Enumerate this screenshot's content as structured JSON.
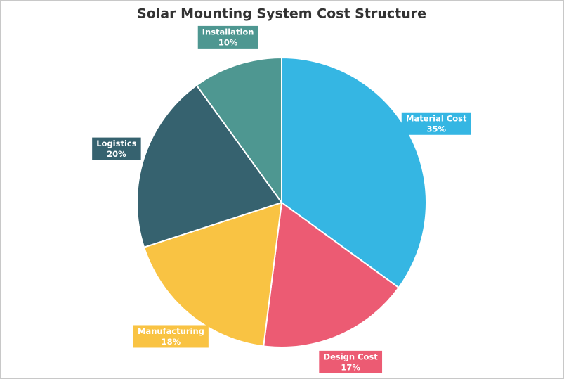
{
  "chart_data": {
    "type": "pie",
    "title": "Solar Mounting System Cost Structure",
    "categories": [
      "Material Cost",
      "Design Cost",
      "Manufacturing",
      "Logistics",
      "Installation"
    ],
    "values": [
      35,
      17,
      18,
      20,
      10
    ],
    "value_labels": [
      "35%",
      "17%",
      "18%",
      "20%",
      "10%"
    ],
    "colors": [
      "#35b6e3",
      "#ec5b73",
      "#f9c343",
      "#36626f",
      "#4e9791"
    ]
  }
}
